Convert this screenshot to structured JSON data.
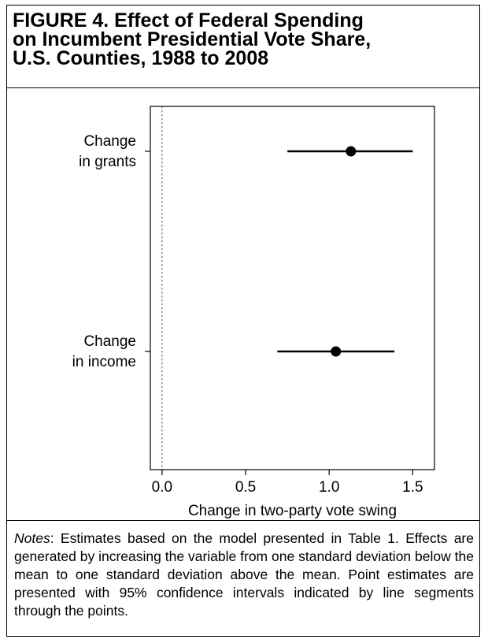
{
  "figure": {
    "title_lines": [
      "FIGURE 4.    Effect of Federal Spending",
      "on Incumbent Presidential Vote Share,",
      "U.S. Counties, 1988 to 2008"
    ]
  },
  "chart_data": {
    "type": "scatter",
    "categories": [
      [
        "Change",
        "in grants"
      ],
      [
        "Change",
        "in income"
      ]
    ],
    "points": [
      {
        "estimate": 1.13,
        "low": 0.75,
        "high": 1.5
      },
      {
        "estimate": 1.04,
        "low": 0.69,
        "high": 1.39
      }
    ],
    "xlabel": "Change in two-party vote swing",
    "xticks": [
      "0.0",
      "0.5",
      "1.0",
      "1.5"
    ],
    "xtick_values": [
      0.0,
      0.5,
      1.0,
      1.5
    ],
    "xlim": [
      -0.07,
      1.63
    ],
    "reference_line": 0.0,
    "grid": false
  },
  "notes": {
    "label": "Notes",
    "text": ": Estimates based on the model presented in Table 1. Effects are generated by increasing the variable from one standard deviation below the mean to one standard deviation above the mean. Point estimates are presented with 95% confidence intervals indicated by line segments through the points."
  }
}
